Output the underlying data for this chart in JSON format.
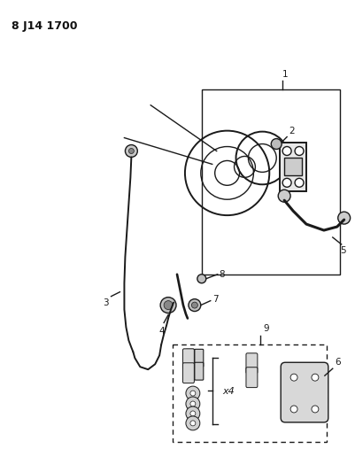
{
  "title": "8 J14 1700",
  "background_color": "#ffffff",
  "line_color": "#1a1a1a",
  "label_color": "#111111",
  "figsize": [
    4.01,
    5.33
  ],
  "dpi": 100
}
